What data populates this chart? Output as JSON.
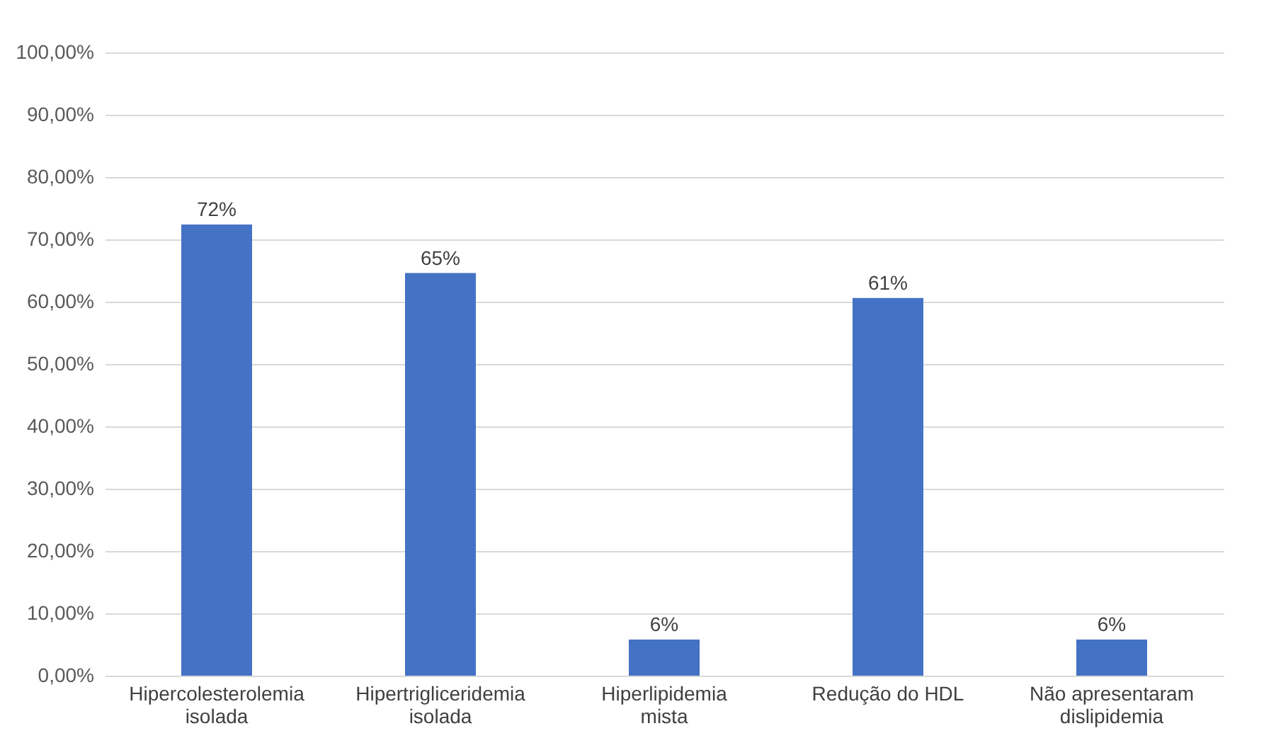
{
  "chart_data": {
    "type": "bar",
    "categories": [
      "Hipercolesterolemia isolada",
      "Hipertrigliceridemia isolada",
      "Hiperlipidemia mista",
      "Redução do HDL",
      "Não apresentaram dislipidemia"
    ],
    "values": [
      72.4,
      64.6,
      5.8,
      60.6,
      5.8
    ],
    "value_labels": [
      "72%",
      "65%",
      "6%",
      "61%",
      "6%"
    ],
    "color": "#4472c4",
    "ylim": [
      0,
      100
    ],
    "yticks": [
      {
        "value": 0,
        "label": "0,00%"
      },
      {
        "value": 10,
        "label": "10,00%"
      },
      {
        "value": 20,
        "label": "20,00%"
      },
      {
        "value": 30,
        "label": "30,00%"
      },
      {
        "value": 40,
        "label": "40,00%"
      },
      {
        "value": 50,
        "label": "50,00%"
      },
      {
        "value": 60,
        "label": "60,00%"
      },
      {
        "value": 70,
        "label": "70,00%"
      },
      {
        "value": 80,
        "label": "80,00%"
      },
      {
        "value": 90,
        "label": "90,00%"
      },
      {
        "value": 100,
        "label": "100,00%"
      }
    ],
    "grid": "y"
  }
}
